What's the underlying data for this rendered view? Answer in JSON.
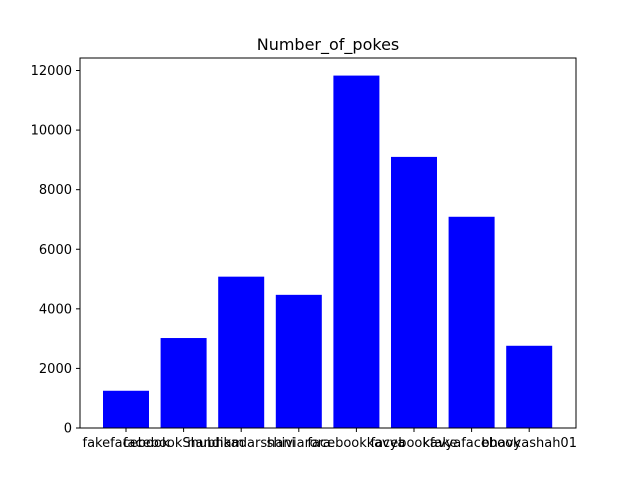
{
  "chart_data": {
    "type": "bar",
    "title": "Number_of_pokes",
    "xlabel": "",
    "ylabel": "",
    "categories": [
      "fakefacebook",
      "facebookShubham",
      "nandikadarshani",
      "shiviarora",
      "facebookkavya",
      "facebookfake",
      "kavyafacebook",
      "bhavyashah01"
    ],
    "values": [
      1250,
      3020,
      5080,
      4470,
      11830,
      9100,
      7090,
      2760
    ],
    "ylim": [
      0,
      12420
    ],
    "yticks": [
      0,
      2000,
      4000,
      6000,
      8000,
      10000,
      12000
    ],
    "bar_color": "#0000ff",
    "grid": false,
    "legend": "none"
  }
}
